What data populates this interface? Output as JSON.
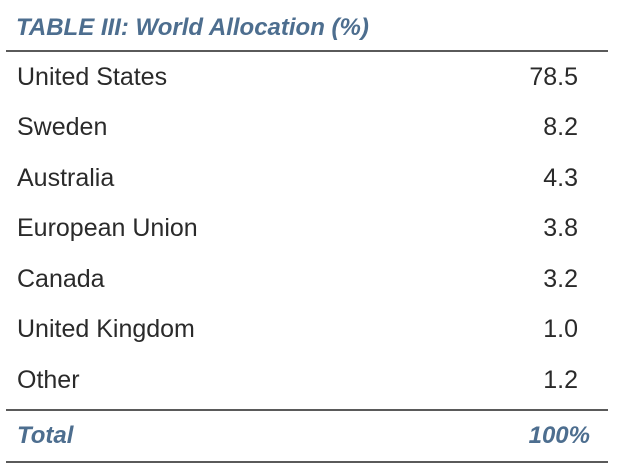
{
  "table": {
    "title": "TABLE III: World Allocation (%)",
    "rows": [
      {
        "label": "United States",
        "value": "78.5"
      },
      {
        "label": "Sweden",
        "value": "8.2"
      },
      {
        "label": "Australia",
        "value": "4.3"
      },
      {
        "label": "European Union",
        "value": "3.8"
      },
      {
        "label": "Canada",
        "value": "3.2"
      },
      {
        "label": "United Kingdom",
        "value": "1.0"
      },
      {
        "label": "Other",
        "value": "1.2"
      }
    ],
    "total": {
      "label": "Total",
      "value": "100%"
    },
    "colors": {
      "title_accent": "#4d6e8f",
      "text": "#2a2a2a",
      "rule": "#5a5a5a"
    }
  }
}
